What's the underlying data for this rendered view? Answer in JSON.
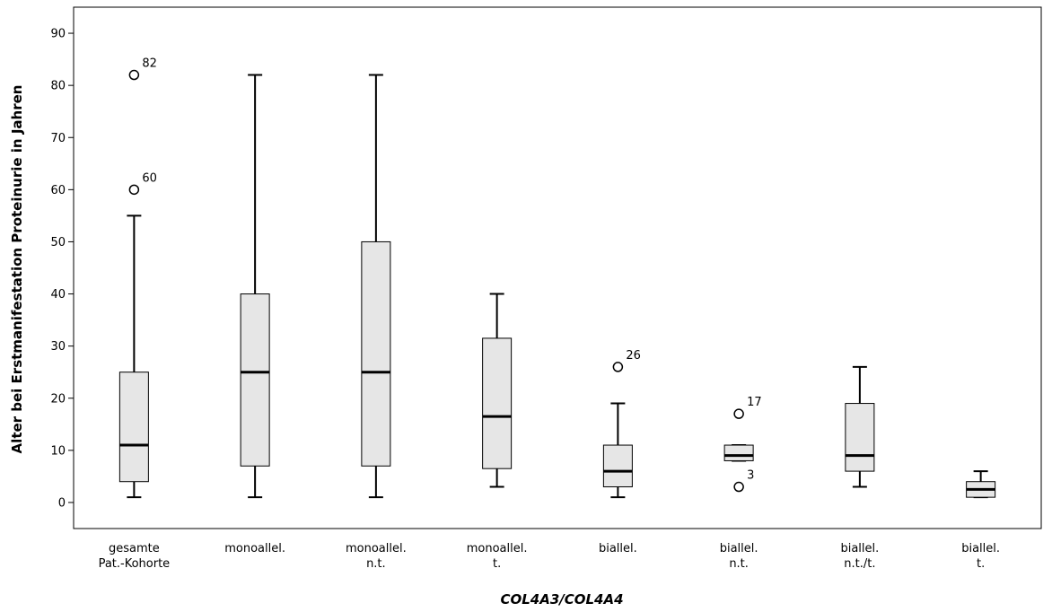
{
  "chart_data": {
    "type": "boxplot",
    "xlabel": "COL4A3/COL4A4",
    "ylabel": "Alter bei Erstmanifestation Proteinurie in Jahren",
    "ylim": [
      -5,
      95
    ],
    "yticks": [
      0,
      10,
      20,
      30,
      40,
      50,
      60,
      70,
      80,
      90
    ],
    "grid": false,
    "box_color": "#e6e6e6",
    "line_color": "#000000",
    "categories": [
      {
        "lines": [
          "gesamte",
          "Pat.-Kohorte"
        ],
        "whisker_low": 1,
        "q1": 4,
        "median": 11,
        "q3": 25,
        "whisker_high": 55,
        "outliers": [
          {
            "value": 82,
            "label": "82"
          },
          {
            "value": 60,
            "label": "60"
          }
        ]
      },
      {
        "lines": [
          "monoallel."
        ],
        "whisker_low": 1,
        "q1": 7,
        "median": 25,
        "q3": 40,
        "whisker_high": 82,
        "outliers": []
      },
      {
        "lines": [
          "monoallel.",
          "n.t."
        ],
        "whisker_low": 1,
        "q1": 7,
        "median": 25,
        "q3": 50,
        "whisker_high": 82,
        "outliers": []
      },
      {
        "lines": [
          "monoallel.",
          "t."
        ],
        "whisker_low": 3,
        "q1": 6.5,
        "median": 16.5,
        "q3": 31.5,
        "whisker_high": 40,
        "outliers": []
      },
      {
        "lines": [
          "biallel."
        ],
        "whisker_low": 1,
        "q1": 3,
        "median": 6,
        "q3": 11,
        "whisker_high": 19,
        "outliers": [
          {
            "value": 26,
            "label": "26"
          }
        ]
      },
      {
        "lines": [
          "biallel.",
          "n.t."
        ],
        "whisker_low": 8,
        "q1": 8,
        "median": 9,
        "q3": 11,
        "whisker_high": 11,
        "outliers": [
          {
            "value": 17,
            "label": "17"
          },
          {
            "value": 3,
            "label": "3"
          }
        ]
      },
      {
        "lines": [
          "biallel.",
          "n.t./t."
        ],
        "whisker_low": 3,
        "q1": 6,
        "median": 9,
        "q3": 19,
        "whisker_high": 26,
        "outliers": []
      },
      {
        "lines": [
          "biallel.",
          "t."
        ],
        "whisker_low": 1,
        "q1": 1,
        "median": 2.5,
        "q3": 4,
        "whisker_high": 6,
        "outliers": []
      }
    ]
  }
}
